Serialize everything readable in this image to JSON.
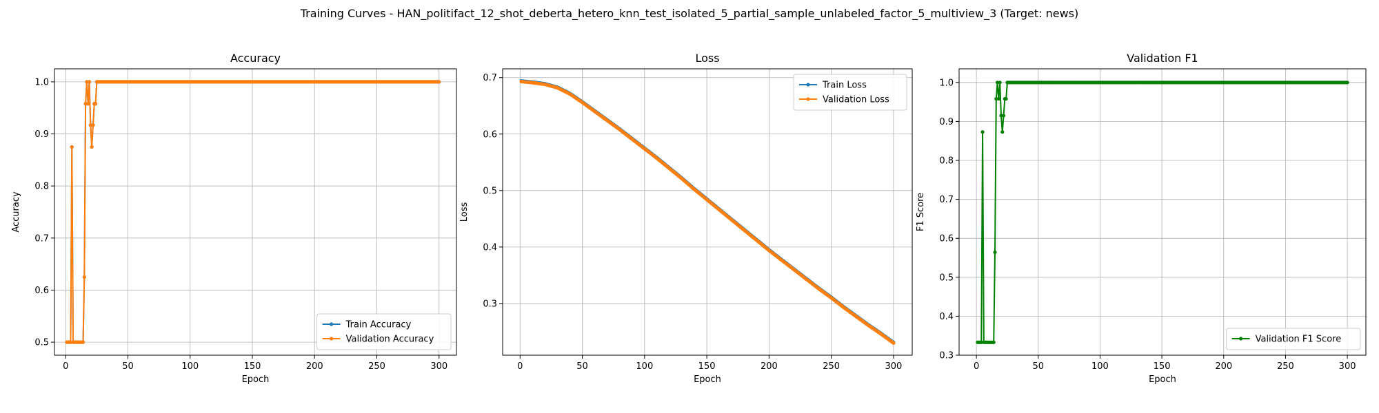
{
  "suptitle": "Training Curves - HAN_politifact_12_shot_deberta_hetero_knn_test_isolated_5_partial_sample_unlabeled_factor_5_multiview_3 (Target: news)",
  "colors": {
    "train": "#1f77b4",
    "validation": "#ff7f0e",
    "f1": "#008000",
    "grid": "#b0b0b0"
  },
  "chart_data": [
    {
      "type": "line",
      "title": "Accuracy",
      "xlabel": "Epoch",
      "ylabel": "Accuracy",
      "xlim": [
        -9,
        314
      ],
      "ylim": [
        0.475,
        1.025
      ],
      "xticks": [
        0,
        50,
        100,
        150,
        200,
        250,
        300
      ],
      "yticks": [
        0.5,
        0.6,
        0.7,
        0.8,
        0.9,
        1.0
      ],
      "ytick_labels": [
        "0.5",
        "0.6",
        "0.7",
        "0.8",
        "0.9",
        "1.0"
      ],
      "legend_position": "lower-right",
      "series": [
        {
          "name": "Train Accuracy",
          "color_key": "train",
          "x": [
            1,
            2,
            3,
            4,
            5,
            6,
            7,
            8,
            9,
            10,
            11,
            12,
            13,
            14,
            15,
            16,
            17,
            18,
            19,
            20,
            21,
            22,
            23,
            24,
            25,
            300
          ],
          "y": [
            0.5,
            0.5,
            0.5,
            0.5,
            0.875,
            0.5,
            0.5,
            0.5,
            0.5,
            0.5,
            0.5,
            0.5,
            0.5,
            0.5,
            0.625,
            0.958,
            1.0,
            0.958,
            1.0,
            0.917,
            0.875,
            0.917,
            0.958,
            0.958,
            1.0,
            1.0
          ]
        },
        {
          "name": "Validation Accuracy",
          "color_key": "validation",
          "x": [
            1,
            2,
            3,
            4,
            5,
            6,
            7,
            8,
            9,
            10,
            11,
            12,
            13,
            14,
            15,
            16,
            17,
            18,
            19,
            20,
            21,
            22,
            23,
            24,
            25,
            300
          ],
          "y": [
            0.5,
            0.5,
            0.5,
            0.5,
            0.875,
            0.5,
            0.5,
            0.5,
            0.5,
            0.5,
            0.5,
            0.5,
            0.5,
            0.5,
            0.625,
            0.958,
            1.0,
            0.958,
            1.0,
            0.917,
            0.875,
            0.917,
            0.958,
            0.958,
            1.0,
            1.0
          ]
        }
      ]
    },
    {
      "type": "line",
      "title": "Loss",
      "xlabel": "Epoch",
      "ylabel": "Loss",
      "xlim": [
        -14,
        315
      ],
      "ylim": [
        0.2085,
        0.7155
      ],
      "xticks": [
        0,
        50,
        100,
        150,
        200,
        250,
        300
      ],
      "yticks": [
        0.3,
        0.4,
        0.5,
        0.6,
        0.7
      ],
      "ytick_labels": [
        "0.3",
        "0.4",
        "0.5",
        "0.6",
        "0.7"
      ],
      "legend_position": "upper-right",
      "series": [
        {
          "name": "Train Loss",
          "color_key": "train",
          "x": [
            1,
            10,
            20,
            30,
            40,
            50,
            60,
            70,
            80,
            90,
            100,
            110,
            120,
            130,
            140,
            150,
            160,
            170,
            180,
            190,
            200,
            210,
            220,
            230,
            240,
            250,
            260,
            270,
            280,
            290,
            300
          ],
          "y": [
            0.694,
            0.692,
            0.689,
            0.683,
            0.672,
            0.657,
            0.641,
            0.625,
            0.609,
            0.592,
            0.575,
            0.558,
            0.54,
            0.522,
            0.503,
            0.485,
            0.467,
            0.449,
            0.431,
            0.413,
            0.395,
            0.378,
            0.361,
            0.344,
            0.327,
            0.311,
            0.294,
            0.278,
            0.262,
            0.247,
            0.231
          ]
        },
        {
          "name": "Validation Loss",
          "color_key": "validation",
          "x": [
            1,
            10,
            20,
            30,
            40,
            50,
            60,
            70,
            80,
            90,
            100,
            110,
            120,
            130,
            140,
            150,
            160,
            170,
            180,
            190,
            200,
            210,
            220,
            230,
            240,
            250,
            260,
            270,
            280,
            290,
            300
          ],
          "y": [
            0.693,
            0.691,
            0.688,
            0.682,
            0.671,
            0.656,
            0.64,
            0.624,
            0.608,
            0.591,
            0.574,
            0.557,
            0.539,
            0.521,
            0.502,
            0.484,
            0.466,
            0.448,
            0.43,
            0.412,
            0.394,
            0.377,
            0.36,
            0.343,
            0.326,
            0.31,
            0.293,
            0.277,
            0.261,
            0.246,
            0.23
          ]
        }
      ]
    },
    {
      "type": "line",
      "title": "Validation F1",
      "xlabel": "Epoch",
      "ylabel": "F1 Score",
      "xlim": [
        -14,
        315
      ],
      "ylim": [
        0.3,
        1.035
      ],
      "xticks": [
        0,
        50,
        100,
        150,
        200,
        250,
        300
      ],
      "yticks": [
        0.3,
        0.4,
        0.5,
        0.6,
        0.7,
        0.8,
        0.9,
        1.0
      ],
      "ytick_labels": [
        "0.3",
        "0.4",
        "0.5",
        "0.6",
        "0.7",
        "0.8",
        "0.9",
        "1.0"
      ],
      "legend_position": "lower-right",
      "series": [
        {
          "name": "Validation F1 Score",
          "color_key": "f1",
          "x": [
            1,
            2,
            3,
            4,
            5,
            6,
            7,
            8,
            9,
            10,
            11,
            12,
            13,
            14,
            15,
            16,
            17,
            18,
            19,
            20,
            21,
            22,
            23,
            24,
            25,
            300
          ],
          "y": [
            0.333,
            0.333,
            0.333,
            0.333,
            0.873,
            0.333,
            0.333,
            0.333,
            0.333,
            0.333,
            0.333,
            0.333,
            0.333,
            0.333,
            0.564,
            0.958,
            1.0,
            0.958,
            1.0,
            0.915,
            0.873,
            0.915,
            0.958,
            0.958,
            1.0,
            1.0
          ]
        }
      ]
    }
  ]
}
